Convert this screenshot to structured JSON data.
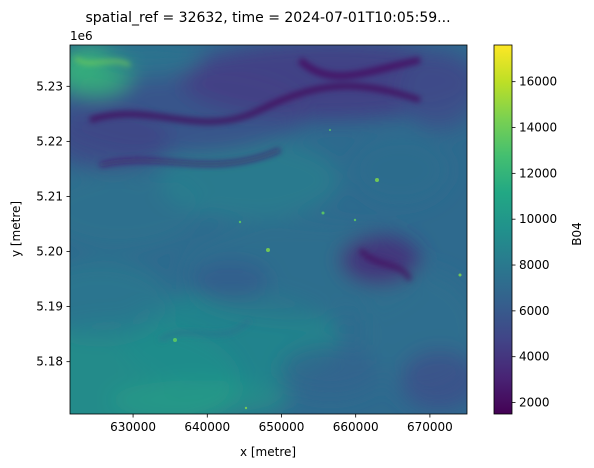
{
  "chart_data": {
    "type": "heatmap",
    "title": "spatial_ref = 32632, time = 2024-07-01T10:05:59...",
    "xlabel": "x [metre]",
    "ylabel": "y [metre]",
    "y_offset_label": "1e6",
    "xlim": [
      621500,
      675000
    ],
    "ylim": [
      5.1705,
      5.2375
    ],
    "x_ticks": [
      630000,
      640000,
      650000,
      660000,
      670000
    ],
    "x_tick_labels": [
      "630000",
      "640000",
      "650000",
      "660000",
      "670000"
    ],
    "y_ticks": [
      5.18,
      5.19,
      5.2,
      5.21,
      5.22,
      5.23
    ],
    "y_tick_labels": [
      "5.18",
      "5.19",
      "5.20",
      "5.21",
      "5.22",
      "5.23"
    ],
    "colorbar": {
      "label": "B04",
      "colormap": "viridis",
      "vmin": 1500,
      "vmax": 17600,
      "ticks": [
        2000,
        4000,
        6000,
        8000,
        10000,
        12000,
        14000,
        16000
      ],
      "tick_labels": [
        "2000",
        "4000",
        "6000",
        "8000",
        "10000",
        "12000",
        "14000",
        "16000"
      ]
    },
    "grid": false
  }
}
